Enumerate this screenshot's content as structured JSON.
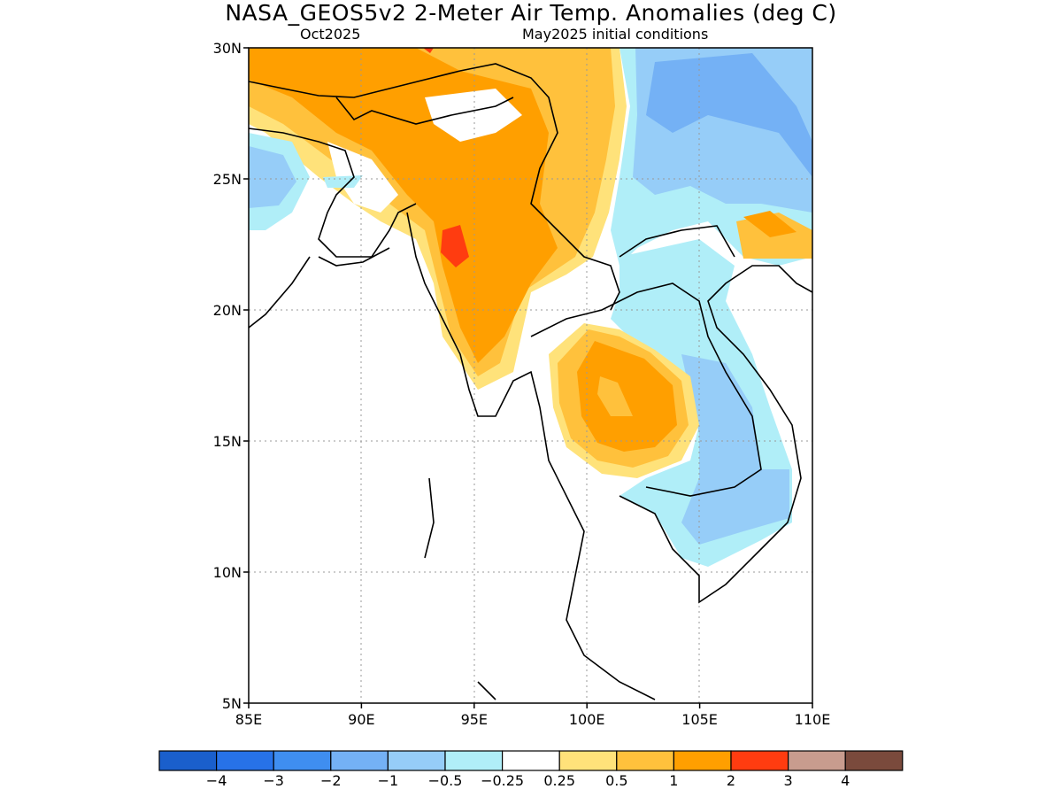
{
  "title": "NASA_GEOS5v2 2-Meter Air Temp. Anomalies (deg C)",
  "subtitle_left": "Oct2025",
  "subtitle_right": "May2025 initial conditions",
  "map": {
    "lon_range": [
      85,
      110
    ],
    "lat_range": [
      5,
      30
    ],
    "lon_ticks": [
      "85E",
      "90E",
      "95E",
      "100E",
      "105E",
      "110E"
    ],
    "lat_ticks": [
      "5N",
      "10N",
      "15N",
      "20N",
      "25N",
      "30N"
    ]
  },
  "colorbar": {
    "colors": [
      "#1a5fcc",
      "#2772e8",
      "#3f8ef0",
      "#74b1f5",
      "#96cdf8",
      "#b0eef8",
      "#ffffff",
      "#ffe27a",
      "#ffc13c",
      "#ff9f00",
      "#ff3c10",
      "#c89c8e",
      "#7a4a3c"
    ],
    "labels": [
      "-4",
      "-3",
      "-2",
      "-1",
      "-0.5",
      "-0.25",
      "0.25",
      "0.5",
      "1",
      "2",
      "3",
      "4"
    ]
  }
}
